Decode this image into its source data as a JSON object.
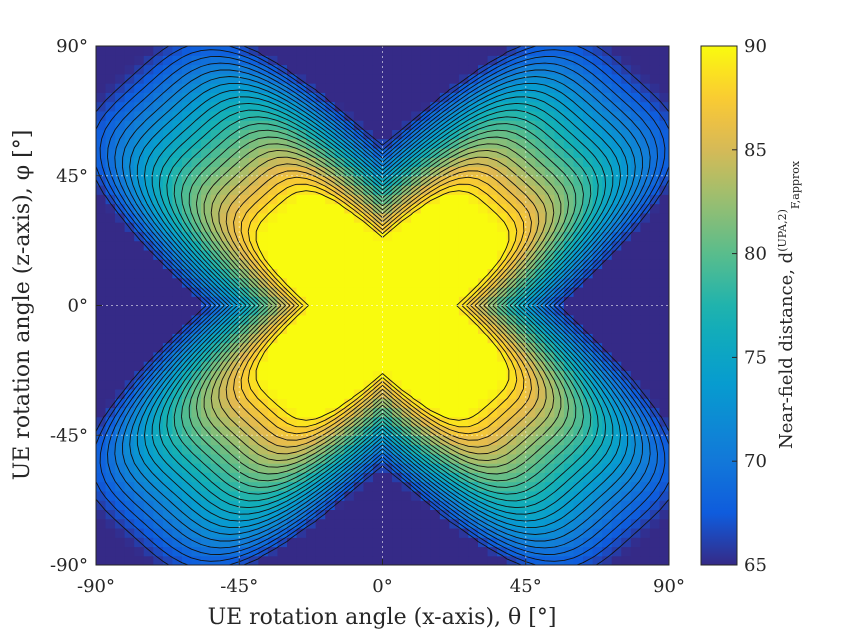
{
  "chart_data": {
    "type": "heatmap",
    "title": "",
    "xlabel": "UE rotation angle (x-axis), θ [°]",
    "ylabel": "UE rotation angle (z-axis), φ [°]",
    "colorbar_label": "Near-field distance, d",
    "colorbar_label_sup": "(UPA,2)",
    "colorbar_label_sub": "F,approx",
    "xlim": [
      -90,
      90
    ],
    "ylim": [
      -90,
      90
    ],
    "x_ticks": [
      -90,
      -45,
      0,
      45,
      90
    ],
    "x_tick_labels": [
      "-90°",
      "-45°",
      "0°",
      "45°",
      "90°"
    ],
    "y_ticks": [
      -90,
      -45,
      0,
      45,
      90
    ],
    "y_tick_labels": [
      "-90°",
      "-45°",
      "0°",
      "45°",
      "90°"
    ],
    "clim": [
      65,
      90
    ],
    "colorbar_ticks": [
      65,
      70,
      75,
      80,
      85,
      90
    ],
    "colorbar_tick_labels": [
      "65",
      "70",
      "75",
      "80",
      "85",
      "90"
    ],
    "colormap": "parula",
    "grid": true,
    "contour_lines": true,
    "contour_step": 1,
    "surface_values": {
      "max": 90,
      "min": 65,
      "at_origin": 90,
      "at_x_edges_center": 65,
      "at_y_edges_center": 65,
      "at_corners": 65
    }
  }
}
